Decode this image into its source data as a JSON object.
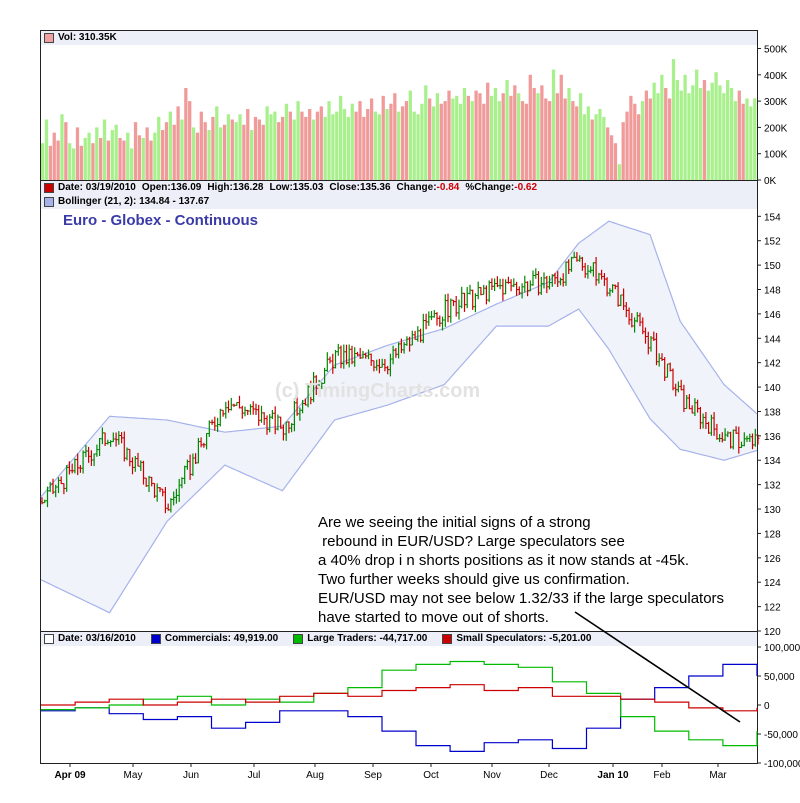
{
  "chart_data": [
    {
      "type": "bar",
      "name": "volume",
      "legend": {
        "label": "Vol: 310.35K",
        "color": "#f0a0a0"
      },
      "y_ticks": [
        "500K",
        "400K",
        "300K",
        "200K",
        "100K",
        "0K"
      ],
      "ylim": [
        0,
        540000
      ],
      "colors": {
        "up": "#a8f08c",
        "down": "#f09a9a"
      },
      "values": [
        140000,
        230000,
        130000,
        180000,
        150000,
        250000,
        220000,
        140000,
        120000,
        200000,
        130000,
        160000,
        180000,
        140000,
        200000,
        160000,
        230000,
        150000,
        190000,
        210000,
        160000,
        150000,
        180000,
        120000,
        220000,
        170000,
        160000,
        200000,
        150000,
        180000,
        240000,
        190000,
        220000,
        260000,
        210000,
        280000,
        230000,
        350000,
        300000,
        200000,
        180000,
        260000,
        220000,
        190000,
        240000,
        280000,
        200000,
        210000,
        250000,
        230000,
        220000,
        250000,
        210000,
        270000,
        190000,
        240000,
        230000,
        210000,
        280000,
        250000,
        260000,
        220000,
        240000,
        290000,
        260000,
        230000,
        300000,
        260000,
        240000,
        270000,
        230000,
        260000,
        280000,
        240000,
        300000,
        250000,
        260000,
        320000,
        270000,
        240000,
        290000,
        260000,
        300000,
        240000,
        270000,
        310000,
        260000,
        250000,
        320000,
        270000,
        290000,
        330000,
        260000,
        280000,
        300000,
        340000,
        260000,
        250000,
        290000,
        360000,
        310000,
        280000,
        330000,
        290000,
        300000,
        340000,
        310000,
        320000,
        290000,
        350000,
        320000,
        300000,
        340000,
        330000,
        290000,
        370000,
        320000,
        350000,
        300000,
        330000,
        380000,
        320000,
        360000,
        330000,
        300000,
        290000,
        400000,
        350000,
        330000,
        360000,
        310000,
        300000,
        420000,
        330000,
        400000,
        310000,
        350000,
        300000,
        280000,
        330000,
        250000,
        280000,
        230000,
        250000,
        270000,
        240000,
        200000,
        170000,
        140000,
        60000,
        220000,
        260000,
        320000,
        290000,
        250000,
        300000,
        340000,
        310000,
        370000,
        330000,
        400000,
        350000,
        310000,
        460000,
        380000,
        340000,
        400000,
        330000,
        360000,
        420000,
        350000,
        380000,
        340000,
        370000,
        410000,
        360000,
        330000,
        380000,
        350000,
        300000,
        340000,
        290000,
        310000,
        280000,
        310350
      ]
    },
    {
      "type": "line",
      "name": "price",
      "legend_date": {
        "label": "Date: 03/19/2010",
        "open": "Open:136.09",
        "high": "High:136.28",
        "low": "Low:135.03",
        "close": "Close:135.36",
        "change_label": "Change:",
        "change_value": "-0.84",
        "pct_label": "%Change:",
        "pct_value": "-0.62",
        "color": "#cc0000"
      },
      "legend_bollinger": {
        "label": "Bollinger (21, 2): 134.84 - 137.67",
        "color": "#a6b2ea"
      },
      "title": "Euro - Globex - Continuous",
      "watermark": "(c) TimingCharts.com",
      "y_ticks": [
        "154",
        "152",
        "150",
        "148",
        "146",
        "144",
        "142",
        "140",
        "138",
        "136",
        "134",
        "132",
        "130",
        "128",
        "126",
        "124",
        "122",
        "120"
      ],
      "ylim": [
        120,
        154.6
      ],
      "x": [
        0,
        25,
        46,
        67,
        88,
        107,
        126,
        147,
        166,
        185,
        196,
        207,
        222,
        233,
        249,
        261
      ],
      "upper_band": [
        131,
        137.6,
        137.3,
        136.3,
        136.8,
        141.8,
        143.4,
        144.8,
        146.8,
        148.6,
        151.8,
        153.6,
        152.5,
        145.4,
        140.2,
        137.8
      ],
      "close": [
        130.6,
        136.3,
        130.2,
        138.9,
        136.7,
        142.5,
        142.1,
        146.3,
        148.2,
        148.6,
        150.3,
        148.3,
        143.6,
        139.1,
        135.8,
        135.4
      ],
      "lower_band": [
        124.2,
        121.5,
        129.0,
        133.6,
        131.5,
        137.3,
        138.5,
        140.2,
        145.0,
        145.0,
        146.4,
        143.1,
        137.4,
        134.9,
        134.0,
        134.8
      ],
      "x_ticks": [
        "Apr 09",
        "May",
        "Jun",
        "Jul",
        "Aug",
        "Sep",
        "Oct",
        "Nov",
        "Dec",
        "Jan 10",
        "Feb",
        "Mar"
      ],
      "colors": {
        "up": "#008800",
        "down": "#cc0000",
        "band": "#a6b2ea",
        "band_fill": "#f0f4fa"
      },
      "annotation_lines": [
        "Are we seeing the initial signs of a strong",
        " rebound in EUR/USD? Large speculators see",
        "a 40% drop i n shorts positions as it now stands at -45k.",
        "Two further weeks should give us confirmation.",
        "EUR/USD may not see below 1.32/33 if the large speculators",
        "have started to move out of shorts."
      ]
    },
    {
      "type": "line",
      "name": "commitment_of_traders",
      "legend": {
        "date": "Date: 03/16/2010",
        "commercials": "Commercials: 49,919.00",
        "large": "Large Traders: -44,717.00",
        "small": "Small Speculators: -5,201.00"
      },
      "y_ticks": [
        "100,000",
        "50,000",
        "0",
        "-50,000",
        "-100,000"
      ],
      "ylim": [
        -100000,
        100000
      ],
      "series": [
        {
          "name": "Commercials",
          "color": "#0000cc",
          "values": [
            -10000,
            -5000,
            -15000,
            -25000,
            -20000,
            -40000,
            -30000,
            -10000,
            -10000,
            -20000,
            -45000,
            -70000,
            -80000,
            -65000,
            -60000,
            -75000,
            -40000,
            10000,
            30000,
            50000,
            70000,
            50000
          ]
        },
        {
          "name": "Large Traders",
          "color": "#00bb00",
          "values": [
            -8000,
            -5000,
            0,
            10000,
            15000,
            0,
            10000,
            5000,
            20000,
            30000,
            60000,
            70000,
            75000,
            70000,
            65000,
            40000,
            20000,
            -20000,
            -45000,
            -60000,
            -70000,
            -45000
          ]
        },
        {
          "name": "Small Speculators",
          "color": "#cc0000",
          "values": [
            0,
            5000,
            10000,
            0,
            5000,
            10000,
            5000,
            15000,
            20000,
            15000,
            25000,
            30000,
            35000,
            25000,
            30000,
            15000,
            15000,
            10000,
            5000,
            -5000,
            -10000,
            -5000
          ]
        }
      ]
    }
  ]
}
